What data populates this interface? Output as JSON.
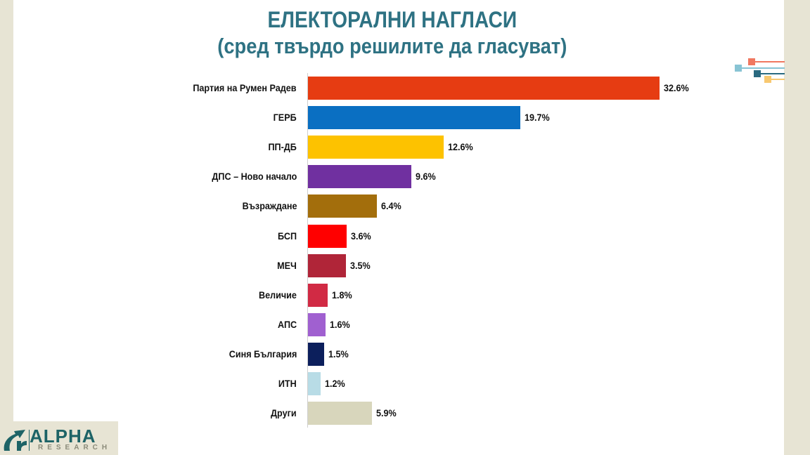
{
  "title": "ЕЛЕКТОРАЛНИ НАГЛАСИ",
  "subtitle": "(сред твърдо решилите да гласуват)",
  "logo": {
    "name": "ALPHA",
    "sub": "RESEARCH",
    "icon": "alpha-research-logo-icon"
  },
  "colors": {
    "title": "#2e7283",
    "panel": "#e7e4d4",
    "deco": [
      "#f07860",
      "#88c4d4",
      "#2a6a80",
      "#f8c870"
    ]
  },
  "chart_data": {
    "type": "bar",
    "orientation": "horizontal",
    "title": "ЕЛЕКТОРАЛНИ НАГЛАСИ",
    "subtitle": "(сред твърдо решилите да гласуват)",
    "xlabel": "",
    "ylabel": "",
    "grid": false,
    "legend": null,
    "unit": "%",
    "categories": [
      "Партия на Румен Радев",
      "ГЕРБ",
      "ПП-ДБ",
      "ДПС – Ново начало",
      "Възраждане",
      "БСП",
      "МЕЧ",
      "Величие",
      "АПС",
      "Синя България",
      "ИТН",
      "Други"
    ],
    "values": [
      32.6,
      19.7,
      12.6,
      9.6,
      6.4,
      3.6,
      3.5,
      1.8,
      1.6,
      1.5,
      1.2,
      5.9
    ],
    "labels": [
      "32.6%",
      "19.7%",
      "12.6%",
      "9.6%",
      "6.4%",
      "3.6%",
      "3.5%",
      "1.8%",
      "1.6%",
      "1.5%",
      "1.2%",
      "5.9%"
    ],
    "colors": [
      "#e63c12",
      "#0a6fc2",
      "#fdc200",
      "#7030a0",
      "#a36e0c",
      "#ff0000",
      "#b02538",
      "#d12a44",
      "#a060d0",
      "#0c1f5c",
      "#b8dce6",
      "#d8d6bc"
    ]
  }
}
